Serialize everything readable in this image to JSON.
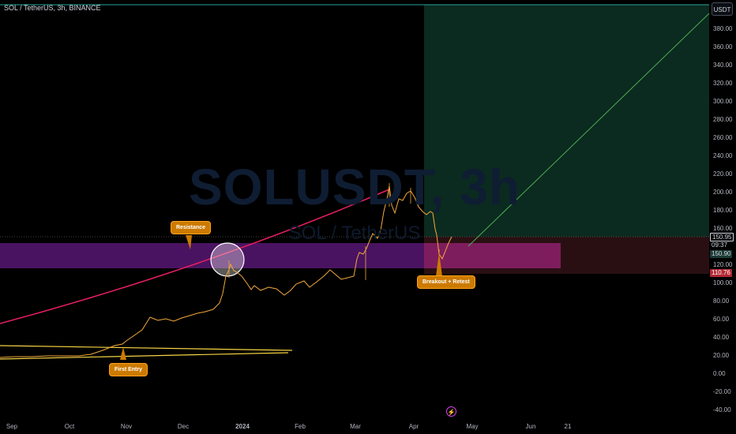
{
  "header": {
    "symbol_title": "SOL / TetherUS, 3h, BINANCE"
  },
  "watermark": {
    "symbol": "SOLUSDT",
    "interval": "3h",
    "description": "SOL / TetherUS"
  },
  "currency_button": "USDT",
  "price_axis": {
    "ticks": [
      "380.00",
      "360.00",
      "340.00",
      "320.00",
      "300.00",
      "280.00",
      "260.00",
      "240.00",
      "220.00",
      "200.00",
      "180.00",
      "160.00",
      "120.00",
      "100.00",
      "80.00",
      "60.00",
      "40.00",
      "20.00",
      "0.00",
      "-20.00",
      "-40.00"
    ],
    "last_price": "150.95",
    "countdown": "09:37",
    "green_level": "150.90",
    "red_level": "110.76"
  },
  "time_axis": {
    "ticks": [
      "Sep",
      "Oct",
      "Nov",
      "Dec",
      "2024",
      "Feb",
      "Mar",
      "Apr",
      "May",
      "Jun",
      "21"
    ]
  },
  "annotations": {
    "resistance": "Resistance",
    "first_entry": "First Entry",
    "breakout": "Breakout + Retest"
  },
  "colors": {
    "background": "#000000",
    "candles": "#f2a93b",
    "curve": "#e91e63",
    "zone": "#7b1fa2",
    "target_zone": "#0b2a20",
    "stop_zone": "#2a0f12",
    "projection": "#4caf50",
    "callout": "#cc7a00"
  },
  "chart_data": {
    "type": "line",
    "series": [
      {
        "x": [
          "Sep",
          "Oct",
          "Nov",
          "Dec",
          "2024",
          "Feb",
          "Mar",
          "Apr",
          "May"
        ],
        "y": [
          20,
          22,
          40,
          60,
          100,
          95,
          125,
          180,
          150.95
        ]
      }
    ],
    "ylim": [
      -40,
      390
    ]
  }
}
